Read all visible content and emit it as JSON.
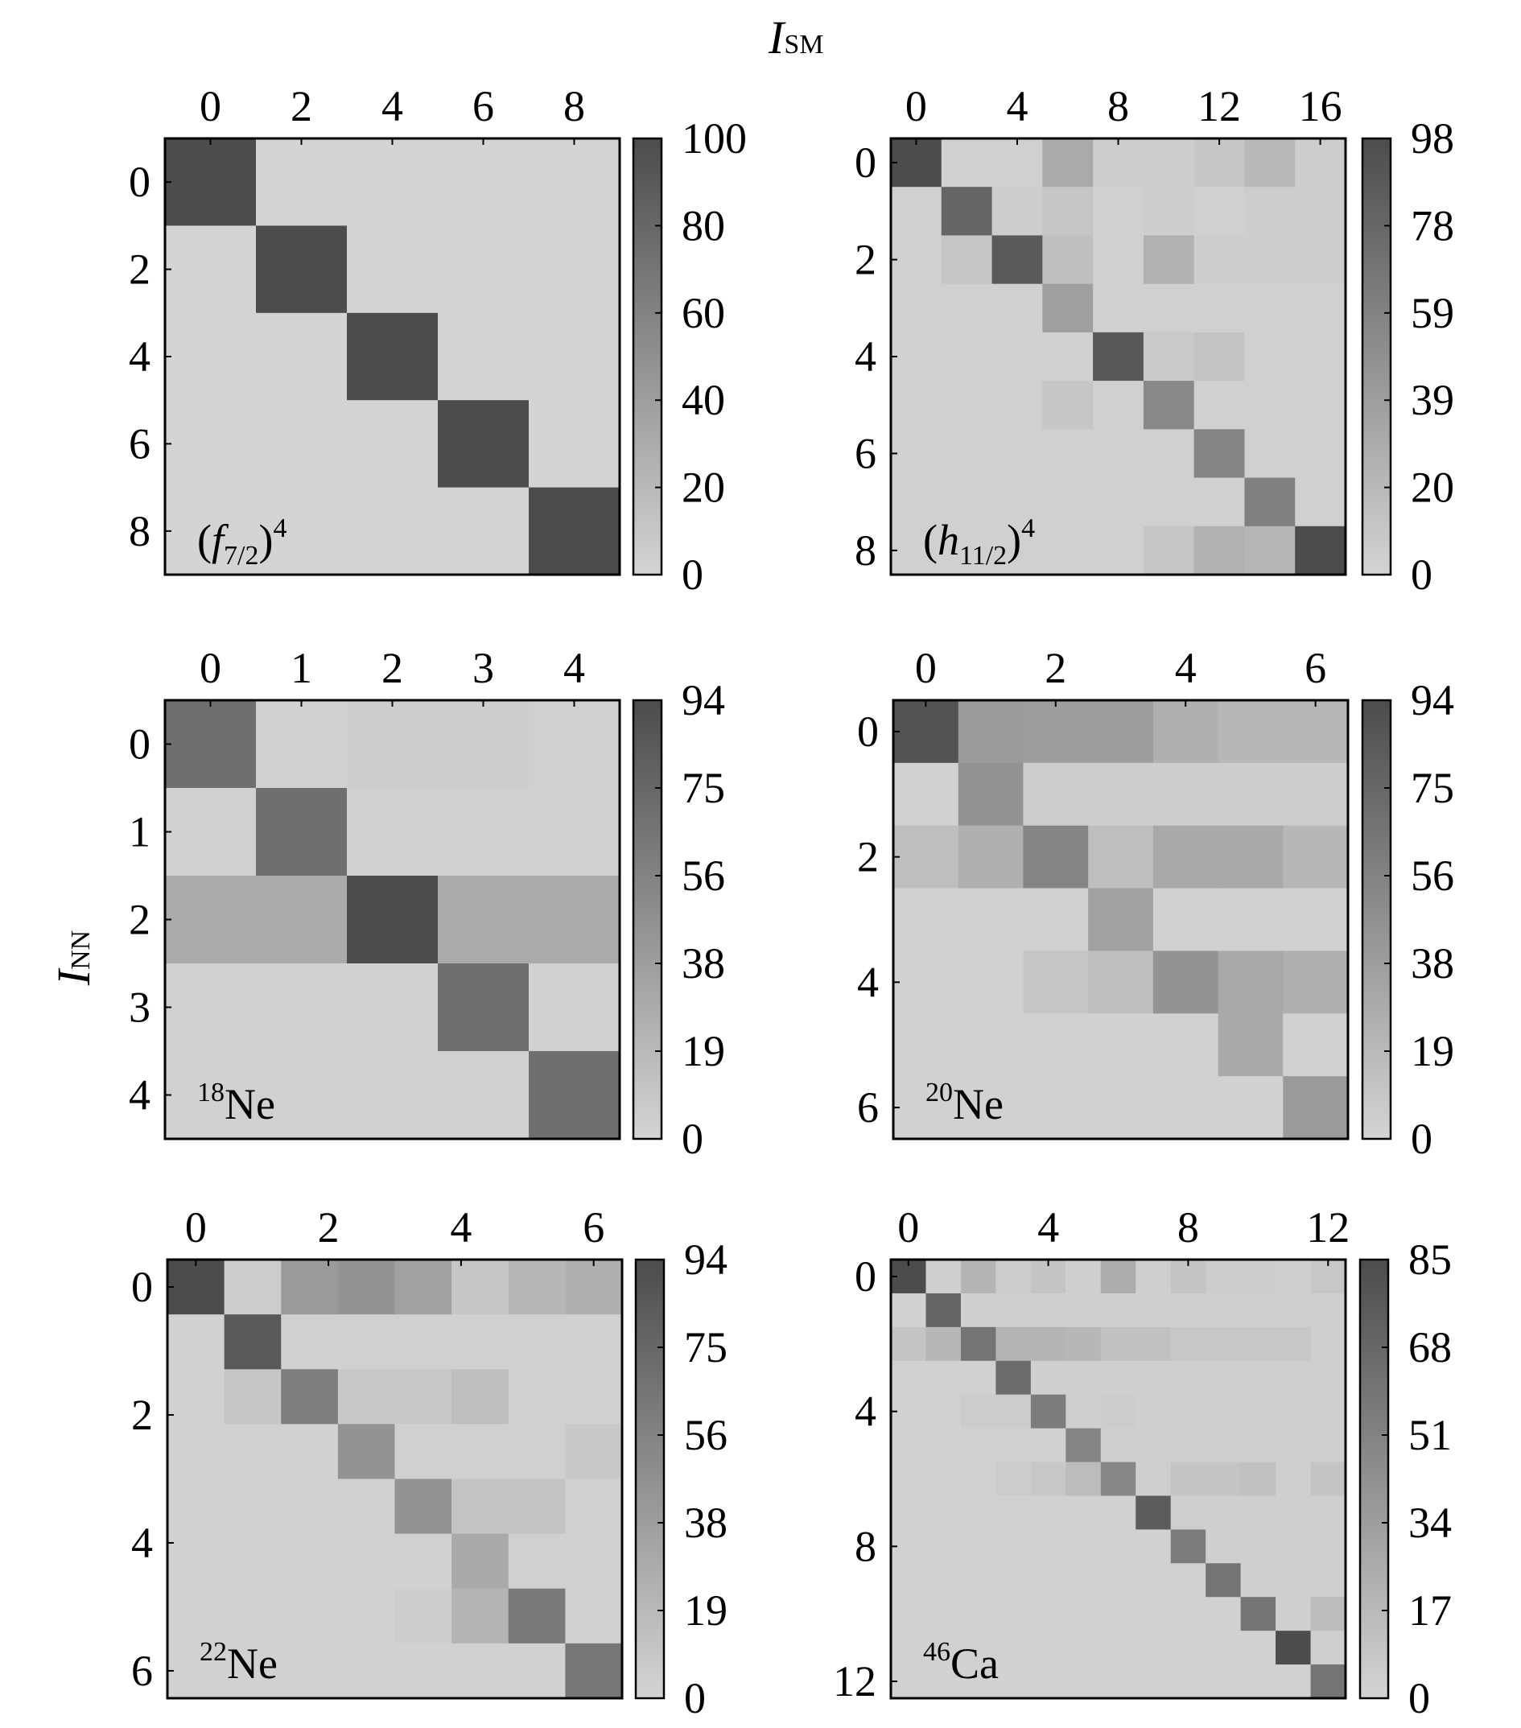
{
  "axis_titles": {
    "x_main": "I",
    "x_sub": "SM",
    "y_main": "I",
    "y_sub": "NN"
  },
  "colors": {
    "low": "#d4d4d4",
    "high": "#4c4c4c",
    "frame": "#000000",
    "background": "#ffffff"
  },
  "chart_data": [
    {
      "type": "heatmap",
      "label_base": "(f",
      "label_sub": "7/2",
      "label_tail": ")",
      "label_sup": "4",
      "x_ticks": [
        "0",
        "2",
        "4",
        "6",
        "8"
      ],
      "y_ticks": [
        "0",
        "2",
        "4",
        "6",
        "8"
      ],
      "colorbar_ticks": [
        "0",
        "20",
        "40",
        "60",
        "80",
        "100"
      ],
      "vmax": 100,
      "matrix": [
        [
          100,
          0,
          0,
          0,
          0
        ],
        [
          0,
          100,
          0,
          0,
          0
        ],
        [
          0,
          0,
          100,
          0,
          0
        ],
        [
          0,
          0,
          0,
          100,
          0
        ],
        [
          0,
          0,
          0,
          0,
          100
        ]
      ]
    },
    {
      "type": "heatmap",
      "label_base": "(h",
      "label_sub": "11/2",
      "label_tail": ")",
      "label_sup": "4",
      "x_ticks": [
        "0",
        "4",
        "8",
        "12",
        "16"
      ],
      "y_ticks": [
        "0",
        "2",
        "4",
        "6",
        "8"
      ],
      "colorbar_ticks": [
        "0",
        "20",
        "39",
        "59",
        "78",
        "98"
      ],
      "vmax": 98,
      "matrix": [
        [
          98,
          3,
          3,
          30,
          5,
          5,
          10,
          20,
          5
        ],
        [
          3,
          80,
          5,
          10,
          3,
          5,
          3,
          5,
          5
        ],
        [
          3,
          10,
          88,
          15,
          3,
          25,
          5,
          5,
          5
        ],
        [
          3,
          3,
          3,
          38,
          3,
          3,
          3,
          3,
          3
        ],
        [
          3,
          3,
          3,
          3,
          90,
          8,
          12,
          3,
          3
        ],
        [
          3,
          3,
          3,
          10,
          3,
          55,
          3,
          3,
          3
        ],
        [
          3,
          3,
          3,
          3,
          3,
          3,
          58,
          3,
          3
        ],
        [
          3,
          3,
          3,
          3,
          3,
          3,
          3,
          60,
          3
        ],
        [
          3,
          3,
          3,
          3,
          3,
          10,
          25,
          22,
          98
        ]
      ]
    },
    {
      "type": "heatmap",
      "label_base": "",
      "label_sup": "18",
      "label_tail": "Ne",
      "x_ticks": [
        "0",
        "1",
        "2",
        "3",
        "4"
      ],
      "y_ticks": [
        "0",
        "1",
        "2",
        "3",
        "4"
      ],
      "colorbar_ticks": [
        "0",
        "19",
        "38",
        "56",
        "75",
        "94"
      ],
      "vmax": 94,
      "matrix": [
        [
          70,
          2,
          5,
          5,
          3
        ],
        [
          2,
          70,
          3,
          3,
          3
        ],
        [
          28,
          28,
          94,
          28,
          28
        ],
        [
          2,
          2,
          2,
          70,
          2
        ],
        [
          2,
          2,
          2,
          2,
          70
        ]
      ]
    },
    {
      "type": "heatmap",
      "label_base": "",
      "label_sup": "20",
      "label_tail": "Ne",
      "x_ticks": [
        "0",
        "2",
        "4",
        "6"
      ],
      "y_ticks": [
        "0",
        "2",
        "4",
        "6"
      ],
      "colorbar_ticks": [
        "0",
        "19",
        "38",
        "56",
        "75",
        "94"
      ],
      "vmax": 94,
      "matrix": [
        [
          90,
          40,
          38,
          38,
          25,
          20,
          20
        ],
        [
          2,
          45,
          5,
          5,
          5,
          5,
          5
        ],
        [
          15,
          25,
          55,
          15,
          30,
          30,
          20
        ],
        [
          2,
          2,
          2,
          35,
          2,
          2,
          2
        ],
        [
          2,
          2,
          10,
          15,
          45,
          30,
          25
        ],
        [
          2,
          2,
          2,
          2,
          2,
          30,
          2
        ],
        [
          2,
          2,
          2,
          2,
          2,
          2,
          40
        ]
      ]
    },
    {
      "type": "heatmap",
      "label_base": "",
      "label_sup": "22",
      "label_tail": "Ne",
      "x_ticks": [
        "0",
        "2",
        "4",
        "6"
      ],
      "y_ticks": [
        "0",
        "2",
        "4",
        "6"
      ],
      "colorbar_ticks": [
        "0",
        "19",
        "38",
        "56",
        "75",
        "94"
      ],
      "vmax": 94,
      "matrix": [
        [
          94,
          5,
          40,
          45,
          35,
          10,
          20,
          25
        ],
        [
          2,
          85,
          3,
          3,
          3,
          3,
          3,
          3
        ],
        [
          2,
          10,
          60,
          8,
          8,
          15,
          3,
          3
        ],
        [
          2,
          2,
          2,
          45,
          3,
          3,
          3,
          8
        ],
        [
          2,
          2,
          2,
          2,
          45,
          12,
          12,
          3
        ],
        [
          2,
          2,
          2,
          2,
          2,
          30,
          3,
          3
        ],
        [
          2,
          2,
          2,
          2,
          5,
          22,
          62,
          3
        ],
        [
          2,
          2,
          2,
          2,
          2,
          2,
          2,
          65
        ]
      ]
    },
    {
      "type": "heatmap",
      "label_base": "",
      "label_sup": "46",
      "label_tail": "Ca",
      "x_ticks": [
        "0",
        "4",
        "8",
        "12"
      ],
      "y_ticks": [
        "0",
        "4",
        "8",
        "12"
      ],
      "colorbar_ticks": [
        "0",
        "17",
        "34",
        "51",
        "68",
        "85"
      ],
      "vmax": 85,
      "matrix": [
        [
          85,
          3,
          20,
          5,
          10,
          3,
          25,
          3,
          10,
          5,
          5,
          3,
          8
        ],
        [
          2,
          70,
          3,
          3,
          3,
          3,
          3,
          3,
          3,
          3,
          3,
          3,
          3
        ],
        [
          10,
          18,
          60,
          20,
          20,
          18,
          12,
          12,
          8,
          8,
          8,
          8,
          3
        ],
        [
          2,
          2,
          2,
          65,
          3,
          3,
          3,
          3,
          3,
          3,
          3,
          3,
          3
        ],
        [
          2,
          2,
          5,
          5,
          55,
          3,
          5,
          3,
          3,
          3,
          3,
          3,
          3
        ],
        [
          2,
          2,
          2,
          2,
          2,
          50,
          3,
          3,
          3,
          3,
          3,
          3,
          3
        ],
        [
          2,
          2,
          2,
          5,
          8,
          15,
          48,
          3,
          10,
          10,
          12,
          3,
          10
        ],
        [
          2,
          2,
          2,
          2,
          2,
          2,
          2,
          75,
          3,
          3,
          3,
          3,
          3
        ],
        [
          2,
          2,
          2,
          2,
          2,
          2,
          2,
          2,
          55,
          3,
          3,
          3,
          3
        ],
        [
          2,
          2,
          2,
          2,
          2,
          2,
          2,
          2,
          2,
          60,
          3,
          3,
          3
        ],
        [
          2,
          2,
          2,
          2,
          2,
          2,
          2,
          2,
          2,
          2,
          60,
          3,
          15
        ],
        [
          2,
          2,
          2,
          2,
          2,
          2,
          2,
          2,
          2,
          2,
          2,
          85,
          3
        ],
        [
          2,
          2,
          2,
          2,
          2,
          2,
          2,
          2,
          2,
          2,
          2,
          2,
          60
        ]
      ]
    }
  ]
}
